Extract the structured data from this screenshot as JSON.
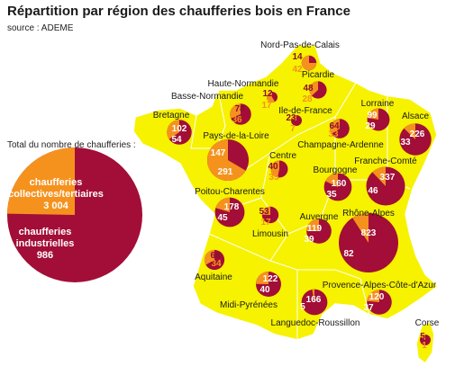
{
  "title": "Répartition par région des chaufferies bois en France",
  "source": "source : ADEME",
  "total": {
    "label": "Total du nombre de chaufferies :",
    "collectives_label_1": "chaufferies",
    "collectives_label_2": "collectives/tertiaires",
    "collectives_value": "3 004",
    "industrielles_label_1": "chaufferies",
    "industrielles_label_2": "industrielles",
    "industrielles_value": "986"
  },
  "colors": {
    "map_fill": "#f6f200",
    "collective": "#a20e37",
    "industrial": "#f5921e",
    "border": "#ffffff"
  },
  "regions": [
    {
      "name": "Nord-Pas-de-Calais",
      "collective": 14,
      "industrial": 42
    },
    {
      "name": "Picardie",
      "collective": 48,
      "industrial": 28
    },
    {
      "name": "Haute-Normandie",
      "collective": 12,
      "industrial": 17
    },
    {
      "name": "Basse-Normandie",
      "collective": 78,
      "industrial": 36
    },
    {
      "name": "Ile-de-France",
      "collective": 23,
      "industrial": 7
    },
    {
      "name": "Lorraine",
      "collective": 99,
      "industrial": 29
    },
    {
      "name": "Alsace",
      "collective": 226,
      "industrial": 33
    },
    {
      "name": "Bretagne",
      "collective": 102,
      "industrial": 54
    },
    {
      "name": "Champagne-Ardenne",
      "collective": 64,
      "industrial": 33
    },
    {
      "name": "Pays-de-la-Loire",
      "collective": 147,
      "industrial": 291
    },
    {
      "name": "Centre",
      "collective": 40,
      "industrial": 35
    },
    {
      "name": "Franche-Comté",
      "collective": 337,
      "industrial": 46
    },
    {
      "name": "Bourgogne",
      "collective": 160,
      "industrial": 35
    },
    {
      "name": "Poitou-Charentes",
      "collective": 178,
      "industrial": 45
    },
    {
      "name": "Limousin",
      "collective": 53,
      "industrial": 17
    },
    {
      "name": "Auvergne",
      "collective": 119,
      "industrial": 39
    },
    {
      "name": "Rhône-Alpes",
      "collective": 823,
      "industrial": 82
    },
    {
      "name": "Aquitaine",
      "collective": 68,
      "industrial": 34
    },
    {
      "name": "Midi-Pyrénées",
      "collective": 122,
      "industrial": 40
    },
    {
      "name": "Languedoc-Roussillon",
      "collective": 166,
      "industrial": 5
    },
    {
      "name": "Provence-Alpes-Côte-d'Azur",
      "collective": 120,
      "industrial": 37
    },
    {
      "name": "Corse",
      "collective": 5,
      "industrial": 1
    }
  ]
}
